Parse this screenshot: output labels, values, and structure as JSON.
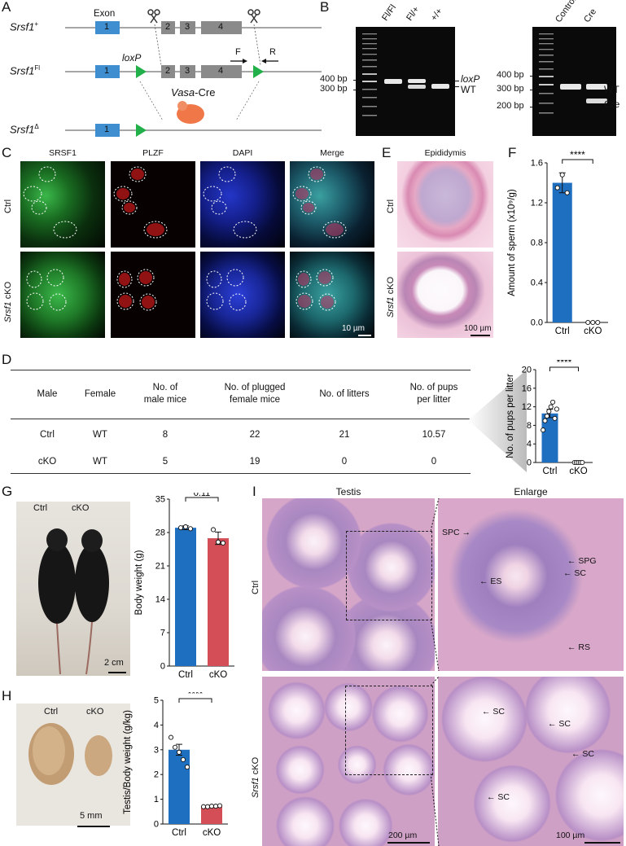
{
  "panels": {
    "A": "A",
    "B": "B",
    "C": "C",
    "D": "D",
    "E": "E",
    "F": "F",
    "G": "G",
    "H": "H",
    "I": "I"
  },
  "panelA": {
    "alleles": [
      {
        "gene": "Srsf1",
        "sup": "+"
      },
      {
        "gene": "Srsf1",
        "sup": "Fl"
      },
      {
        "gene": "Srsf1",
        "sup": "Δ"
      }
    ],
    "exon_label": "Exon",
    "exons": [
      "1",
      "2",
      "3",
      "4"
    ],
    "loxp": "loxP",
    "primer_f": "F",
    "primer_r": "R",
    "cre_name": "Vasa",
    "cre_suffix": "-Cre"
  },
  "panelB": {
    "gel1_lanes": [
      "Fl/Fl",
      "Fl/+",
      "+/+"
    ],
    "gel1_markers": [
      "400 bp",
      "300 bp"
    ],
    "gel1_bands": [
      "loxP",
      "WT"
    ],
    "gel2_lanes": [
      "Control",
      "Cre"
    ],
    "gel2_markers": [
      "400 bp",
      "300 bp",
      "200 bp"
    ],
    "gel2_bands": [
      "WT",
      "Cre"
    ]
  },
  "panelC": {
    "channels": [
      "SRSF1",
      "PLZF",
      "DAPI",
      "Merge"
    ],
    "rows": [
      {
        "pre": "",
        "gene": "",
        "label": "Ctrl"
      },
      {
        "pre": "Srsf1",
        "label": " cKO"
      }
    ],
    "scale": "10 µm"
  },
  "panelE": {
    "title": "Epididymis",
    "rows": [
      "Ctrl",
      "Srsf1 cKO"
    ],
    "row2_gene": "Srsf1",
    "row2_rest": " cKO",
    "scale": "100 µm"
  },
  "panelF": {
    "sig": "****",
    "ylabel": "Amount of sperm (x10⁹/g)",
    "chart_data": {
      "type": "bar",
      "categories": [
        "Ctrl",
        "cKO"
      ],
      "values": [
        1.4,
        0.0
      ],
      "errors": [
        0.1,
        0.0
      ],
      "points": [
        [
          1.35,
          1.48,
          1.3
        ],
        [
          0,
          0,
          0
        ]
      ],
      "ylabel": "Amount of sperm (x10⁹/g)",
      "yticks": [
        "0.0",
        "0.4",
        "0.8",
        "1.2",
        "1.6"
      ],
      "ylim": [
        0,
        1.6
      ],
      "colors": [
        "#1f6fc0",
        "#d34e57"
      ]
    }
  },
  "panelD": {
    "headers": [
      "Male",
      "Female",
      "No. of\nmale mice",
      "No. of plugged\nfemale mice",
      "No. of litters",
      "No. of pups\nper litter"
    ],
    "rows": [
      [
        "Ctrl",
        "WT",
        "8",
        "22",
        "21",
        "10.57"
      ],
      [
        "cKO",
        "WT",
        "5",
        "19",
        "0",
        "0"
      ]
    ],
    "sig": "****",
    "ylabel": "No. of pups per litter",
    "chart_data": {
      "type": "bar",
      "categories": [
        "Ctrl",
        "cKO"
      ],
      "values": [
        10.57,
        0
      ],
      "errors": [
        0.9,
        0
      ],
      "points": [
        [
          7,
          9,
          10,
          11,
          12,
          13,
          9.5,
          11.5
        ],
        [
          0,
          0,
          0,
          0,
          0
        ]
      ],
      "ylabel": "No. of pups per litter",
      "yticks": [
        "0",
        "4",
        "8",
        "12",
        "16",
        "20"
      ],
      "ylim": [
        0,
        20
      ],
      "colors": [
        "#1f6fc0",
        "#d34e57"
      ]
    }
  },
  "panelG": {
    "labels": [
      "Ctrl",
      "cKO"
    ],
    "scale": "2 cm",
    "pval": "0.11",
    "ylabel": "Body weight (g)",
    "chart_data": {
      "type": "bar",
      "categories": [
        "Ctrl",
        "cKO"
      ],
      "values": [
        29.0,
        26.8
      ],
      "errors": [
        0.4,
        1.3
      ],
      "points": [
        [
          29,
          29.2,
          28.8
        ],
        [
          28.6,
          26,
          25.8
        ]
      ],
      "ylabel": "Body weight (g)",
      "yticks": [
        "0",
        "7",
        "14",
        "21",
        "28",
        "35"
      ],
      "ylim": [
        0,
        35
      ],
      "colors": [
        "#1f6fc0",
        "#d34e57"
      ]
    }
  },
  "panelH": {
    "labels": [
      "Ctrl",
      "cKO"
    ],
    "scale": "5 mm",
    "sig": "****",
    "ylabel": "Testis/Body weight (g/kg)",
    "chart_data": {
      "type": "bar",
      "categories": [
        "Ctrl",
        "cKO"
      ],
      "values": [
        3.0,
        0.72
      ],
      "errors": [
        0.22,
        0.03
      ],
      "points": [
        [
          3.5,
          3.1,
          2.9,
          2.6,
          2.3
        ],
        [
          0.7,
          0.7,
          0.72,
          0.72,
          0.74
        ]
      ],
      "ylabel": "Testis/Body weight (g/kg)",
      "yticks": [
        "0",
        "1",
        "2",
        "3",
        "4",
        "5"
      ],
      "ylim": [
        0,
        5
      ],
      "colors": [
        "#1f6fc0",
        "#d34e57"
      ]
    }
  },
  "panelI": {
    "cols": [
      "Testis",
      "Enlarge"
    ],
    "rows": [
      "Ctrl"
    ],
    "row2_gene": "Srsf1",
    "row2_rest": " cKO",
    "ctrl_cells": [
      "SPC",
      "SPG",
      "ES",
      "SC",
      "RS"
    ],
    "cko_cells": [
      "SC",
      "SC",
      "SC",
      "SC"
    ],
    "scale_left": "200 µm",
    "scale_right": "100 µm"
  }
}
